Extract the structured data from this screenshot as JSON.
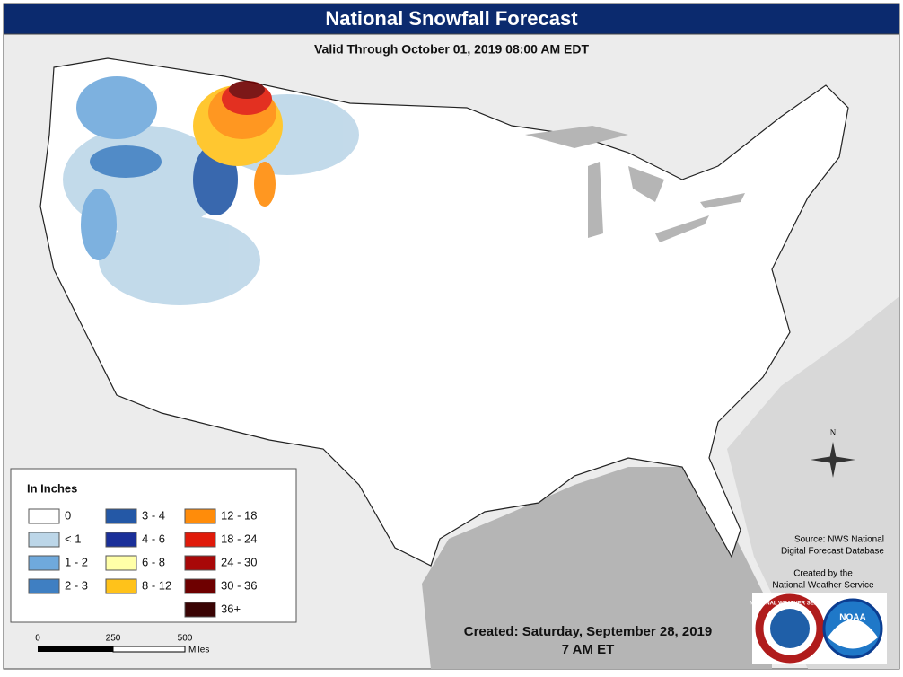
{
  "header": {
    "title": "National Snowfall Forecast",
    "subtitle": "Valid Through October 01, 2019 08:00 AM EDT"
  },
  "legend": {
    "title": "In Inches",
    "items": [
      {
        "label": "0",
        "color": "#ffffff"
      },
      {
        "label": "< 1",
        "color": "#bcd6e8"
      },
      {
        "label": "1 - 2",
        "color": "#6fa9dc"
      },
      {
        "label": "2 - 3",
        "color": "#3f7fc2"
      },
      {
        "label": "3 - 4",
        "color": "#2458a6"
      },
      {
        "label": "4 - 6",
        "color": "#1a2f99"
      },
      {
        "label": "6 - 8",
        "color": "#ffffa8"
      },
      {
        "label": "8 - 12",
        "color": "#ffc21a"
      },
      {
        "label": "12 - 18",
        "color": "#ff8c0a"
      },
      {
        "label": "18 - 24",
        "color": "#e01a0a"
      },
      {
        "label": "24 - 30",
        "color": "#a80808"
      },
      {
        "label": "30 - 36",
        "color": "#6e0000"
      },
      {
        "label": "36+",
        "color": "#3a0404"
      }
    ]
  },
  "scale_bar": {
    "ticks": [
      "0",
      "250",
      "500"
    ],
    "unit": "Miles"
  },
  "compass": "N",
  "source": [
    "Source: NWS National",
    "Digital Forecast Database"
  ],
  "credit": [
    "Created by the",
    "National Weather Service"
  ],
  "created": {
    "date": "Created: Saturday, September 28, 2019",
    "time": "7 AM ET"
  },
  "logos": {
    "nws": "NATIONAL WEATHER SERVICE",
    "noaa": "NOAA"
  }
}
